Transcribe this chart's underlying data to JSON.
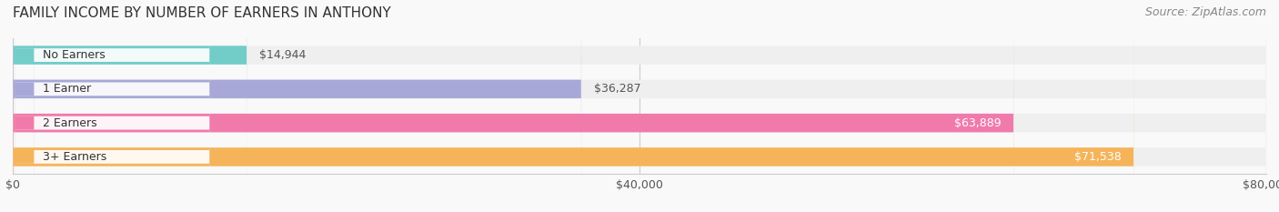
{
  "title": "FAMILY INCOME BY NUMBER OF EARNERS IN ANTHONY",
  "source": "Source: ZipAtlas.com",
  "categories": [
    "No Earners",
    "1 Earner",
    "2 Earners",
    "3+ Earners"
  ],
  "values": [
    14944,
    36287,
    63889,
    71538
  ],
  "labels": [
    "$14,944",
    "$36,287",
    "$63,889",
    "$71,538"
  ],
  "bar_colors": [
    "#72cdc9",
    "#a8a8d8",
    "#f07bab",
    "#f5b45a"
  ],
  "bar_bg_color": "#efefef",
  "label_colors": [
    "#555555",
    "#555555",
    "#ffffff",
    "#ffffff"
  ],
  "xmax": 80000,
  "xticks": [
    0,
    40000,
    80000
  ],
  "xticklabels": [
    "$0",
    "$40,000",
    "$80,000"
  ],
  "background_color": "#f9f9f9",
  "title_fontsize": 11,
  "source_fontsize": 9,
  "bar_label_fontsize": 9,
  "category_fontsize": 9,
  "bar_height": 0.55,
  "bar_gap": 0.12
}
